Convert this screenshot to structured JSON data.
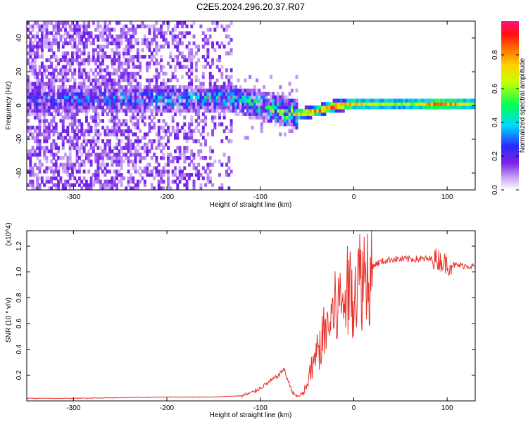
{
  "title": "C2E5.2024.296.20.37.R07",
  "chart_data": [
    {
      "type": "heatmap",
      "name": "spectrogram",
      "xlabel": "Height of straight line (km)",
      "ylabel": "Frequency (Hz)",
      "xlim": [
        -350,
        130
      ],
      "ylim": [
        -50,
        50
      ],
      "xticks": [
        -300,
        -200,
        -100,
        0,
        100
      ],
      "yticks": [
        -40,
        -20,
        0,
        20,
        40
      ],
      "colorbar": {
        "label": "Normalized spectral amplitude",
        "range": [
          0.0,
          1.0
        ],
        "ticks": [
          "0.0",
          "0.2",
          "0.4",
          "0.6",
          "0.8"
        ],
        "tick_values": [
          0.0,
          0.2,
          0.4,
          0.6,
          0.8
        ],
        "colors": [
          "#ffffff",
          "#8a2be2",
          "#2a2aff",
          "#00e5ff",
          "#00ff44",
          "#ffff00",
          "#ff8000",
          "#ff0000",
          "#ff0080"
        ]
      },
      "signal_center_hz": [
        [
          -350,
          3
        ],
        [
          -300,
          4
        ],
        [
          -200,
          4
        ],
        [
          -130,
          4
        ],
        [
          -100,
          0
        ],
        [
          -80,
          -3
        ],
        [
          -60,
          -5
        ],
        [
          -40,
          -3
        ],
        [
          -20,
          0
        ],
        [
          0,
          1
        ],
        [
          50,
          1
        ],
        [
          130,
          1
        ]
      ],
      "signal_peak_amplitude": [
        [
          -350,
          0.25
        ],
        [
          -300,
          0.3
        ],
        [
          -200,
          0.35
        ],
        [
          -130,
          0.4
        ],
        [
          -100,
          0.5
        ],
        [
          -70,
          0.6
        ],
        [
          -40,
          0.8
        ],
        [
          -20,
          0.85
        ],
        [
          0,
          0.7
        ],
        [
          60,
          0.6
        ],
        [
          90,
          0.85
        ],
        [
          130,
          0.6
        ]
      ],
      "noise_extent_km": [
        -350,
        -130
      ]
    },
    {
      "type": "line",
      "name": "snr",
      "xlabel": "Height of straight line (km)",
      "ylabel": "SNR (10 * v/v)",
      "scale_label": "(x10^4)",
      "xlim": [
        -350,
        130
      ],
      "ylim": [
        0,
        1.32
      ],
      "xticks": [
        -300,
        -200,
        -100,
        0,
        100
      ],
      "yticks": [
        0.2,
        0.4,
        0.6,
        0.8,
        1.0,
        1.2
      ],
      "color": "#e8322c",
      "series": [
        {
          "name": "SNR",
          "x": [
            -350,
            -300,
            -250,
            -200,
            -150,
            -120,
            -110,
            -100,
            -90,
            -80,
            -75,
            -70,
            -65,
            -60,
            -55,
            -50,
            -45,
            -40,
            -35,
            -30,
            -25,
            -20,
            -15,
            -10,
            -5,
            0,
            10,
            20,
            30,
            40,
            50,
            60,
            70,
            80,
            85,
            90,
            95,
            100,
            110,
            120,
            130
          ],
          "y": [
            0.02,
            0.02,
            0.025,
            0.03,
            0.03,
            0.04,
            0.06,
            0.1,
            0.15,
            0.2,
            0.25,
            0.15,
            0.06,
            0.03,
            0.05,
            0.12,
            0.25,
            0.35,
            0.45,
            0.55,
            0.62,
            0.7,
            0.75,
            0.8,
            0.85,
            0.9,
            0.98,
            1.05,
            1.08,
            1.1,
            1.1,
            1.1,
            1.1,
            1.1,
            1.1,
            1.1,
            1.08,
            1.06,
            1.05,
            1.05,
            1.04
          ]
        }
      ]
    }
  ]
}
